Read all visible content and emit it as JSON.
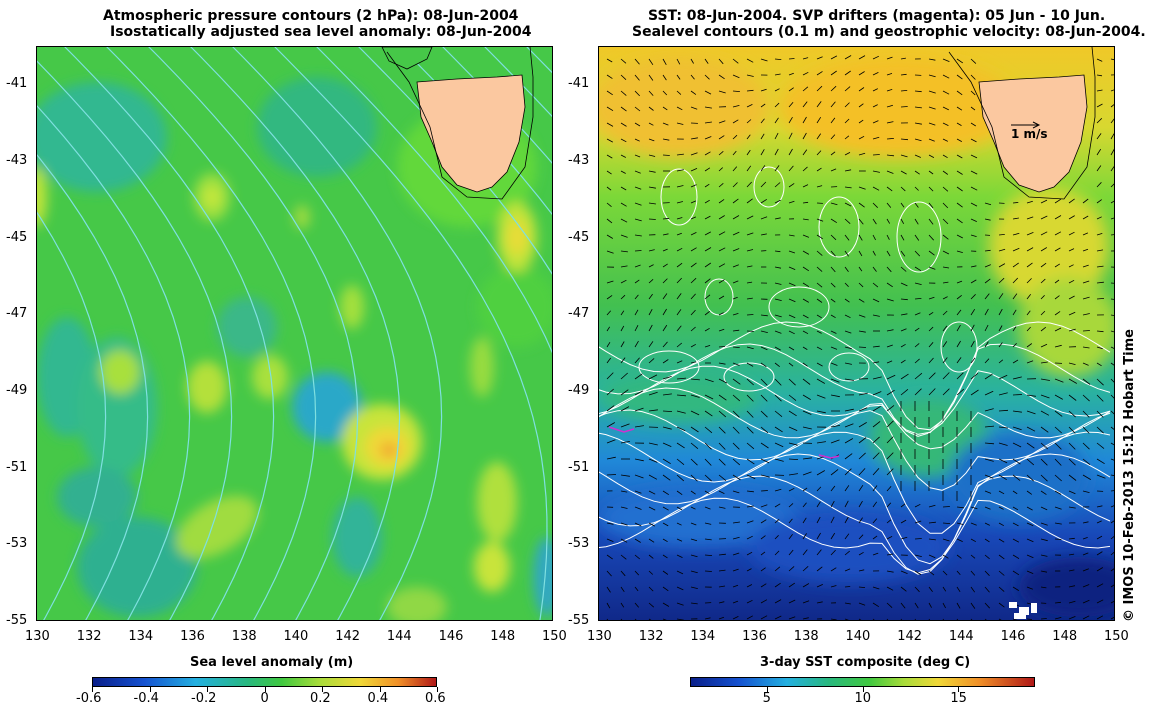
{
  "left_panel": {
    "title_line1": "Atmospheric pressure contours (2 hPa): 08-Jun-2004",
    "title_line2": "Isostatically adjusted sea level anomaly: 08-Jun-2004",
    "colorbar_title": "Sea level anomaly (m)",
    "colorbar_ticks": [
      "-0.6",
      "-0.4",
      "-0.2",
      "0",
      "0.2",
      "0.4",
      "0.6"
    ],
    "colorbar_values": [
      -0.6,
      -0.4,
      -0.2,
      0,
      0.2,
      0.4,
      0.6
    ],
    "colorbar_range": [
      -0.6,
      0.6
    ]
  },
  "right_panel": {
    "title_line1": "SST: 08-Jun-2004. SVP drifters (magenta): 05 Jun - 10 Jun.",
    "title_line2": "Sealevel contours (0.1 m) and geostrophic velocity: 08-Jun-2004.",
    "colorbar_title": "3-day SST composite (deg C)",
    "colorbar_ticks": [
      "5",
      "10",
      "15"
    ],
    "colorbar_values": [
      5,
      10,
      15
    ],
    "colorbar_range": [
      1,
      19
    ],
    "velocity_scale_label": "1 m/s"
  },
  "axes": {
    "lon_ticks": [
      "130",
      "132",
      "134",
      "136",
      "138",
      "140",
      "142",
      "144",
      "146",
      "148",
      "150"
    ],
    "lon_values": [
      130,
      132,
      134,
      136,
      138,
      140,
      142,
      144,
      146,
      148,
      150
    ],
    "lon_range": [
      130,
      150
    ],
    "lat_ticks": [
      "-41",
      "-43",
      "-45",
      "-47",
      "-49",
      "-51",
      "-53",
      "-55"
    ],
    "lat_values": [
      -41,
      -43,
      -45,
      -47,
      -49,
      -51,
      -53,
      -55
    ],
    "lat_range": [
      -55,
      -40
    ]
  },
  "credit": "© IMOS 10-Feb-2013 15:12 Hobart Time",
  "colors": {
    "land": "#fbc8a0",
    "pressure_contour": "#7fe0e0",
    "sealevel_contour": "#ffffff",
    "coastline": "#000000"
  }
}
